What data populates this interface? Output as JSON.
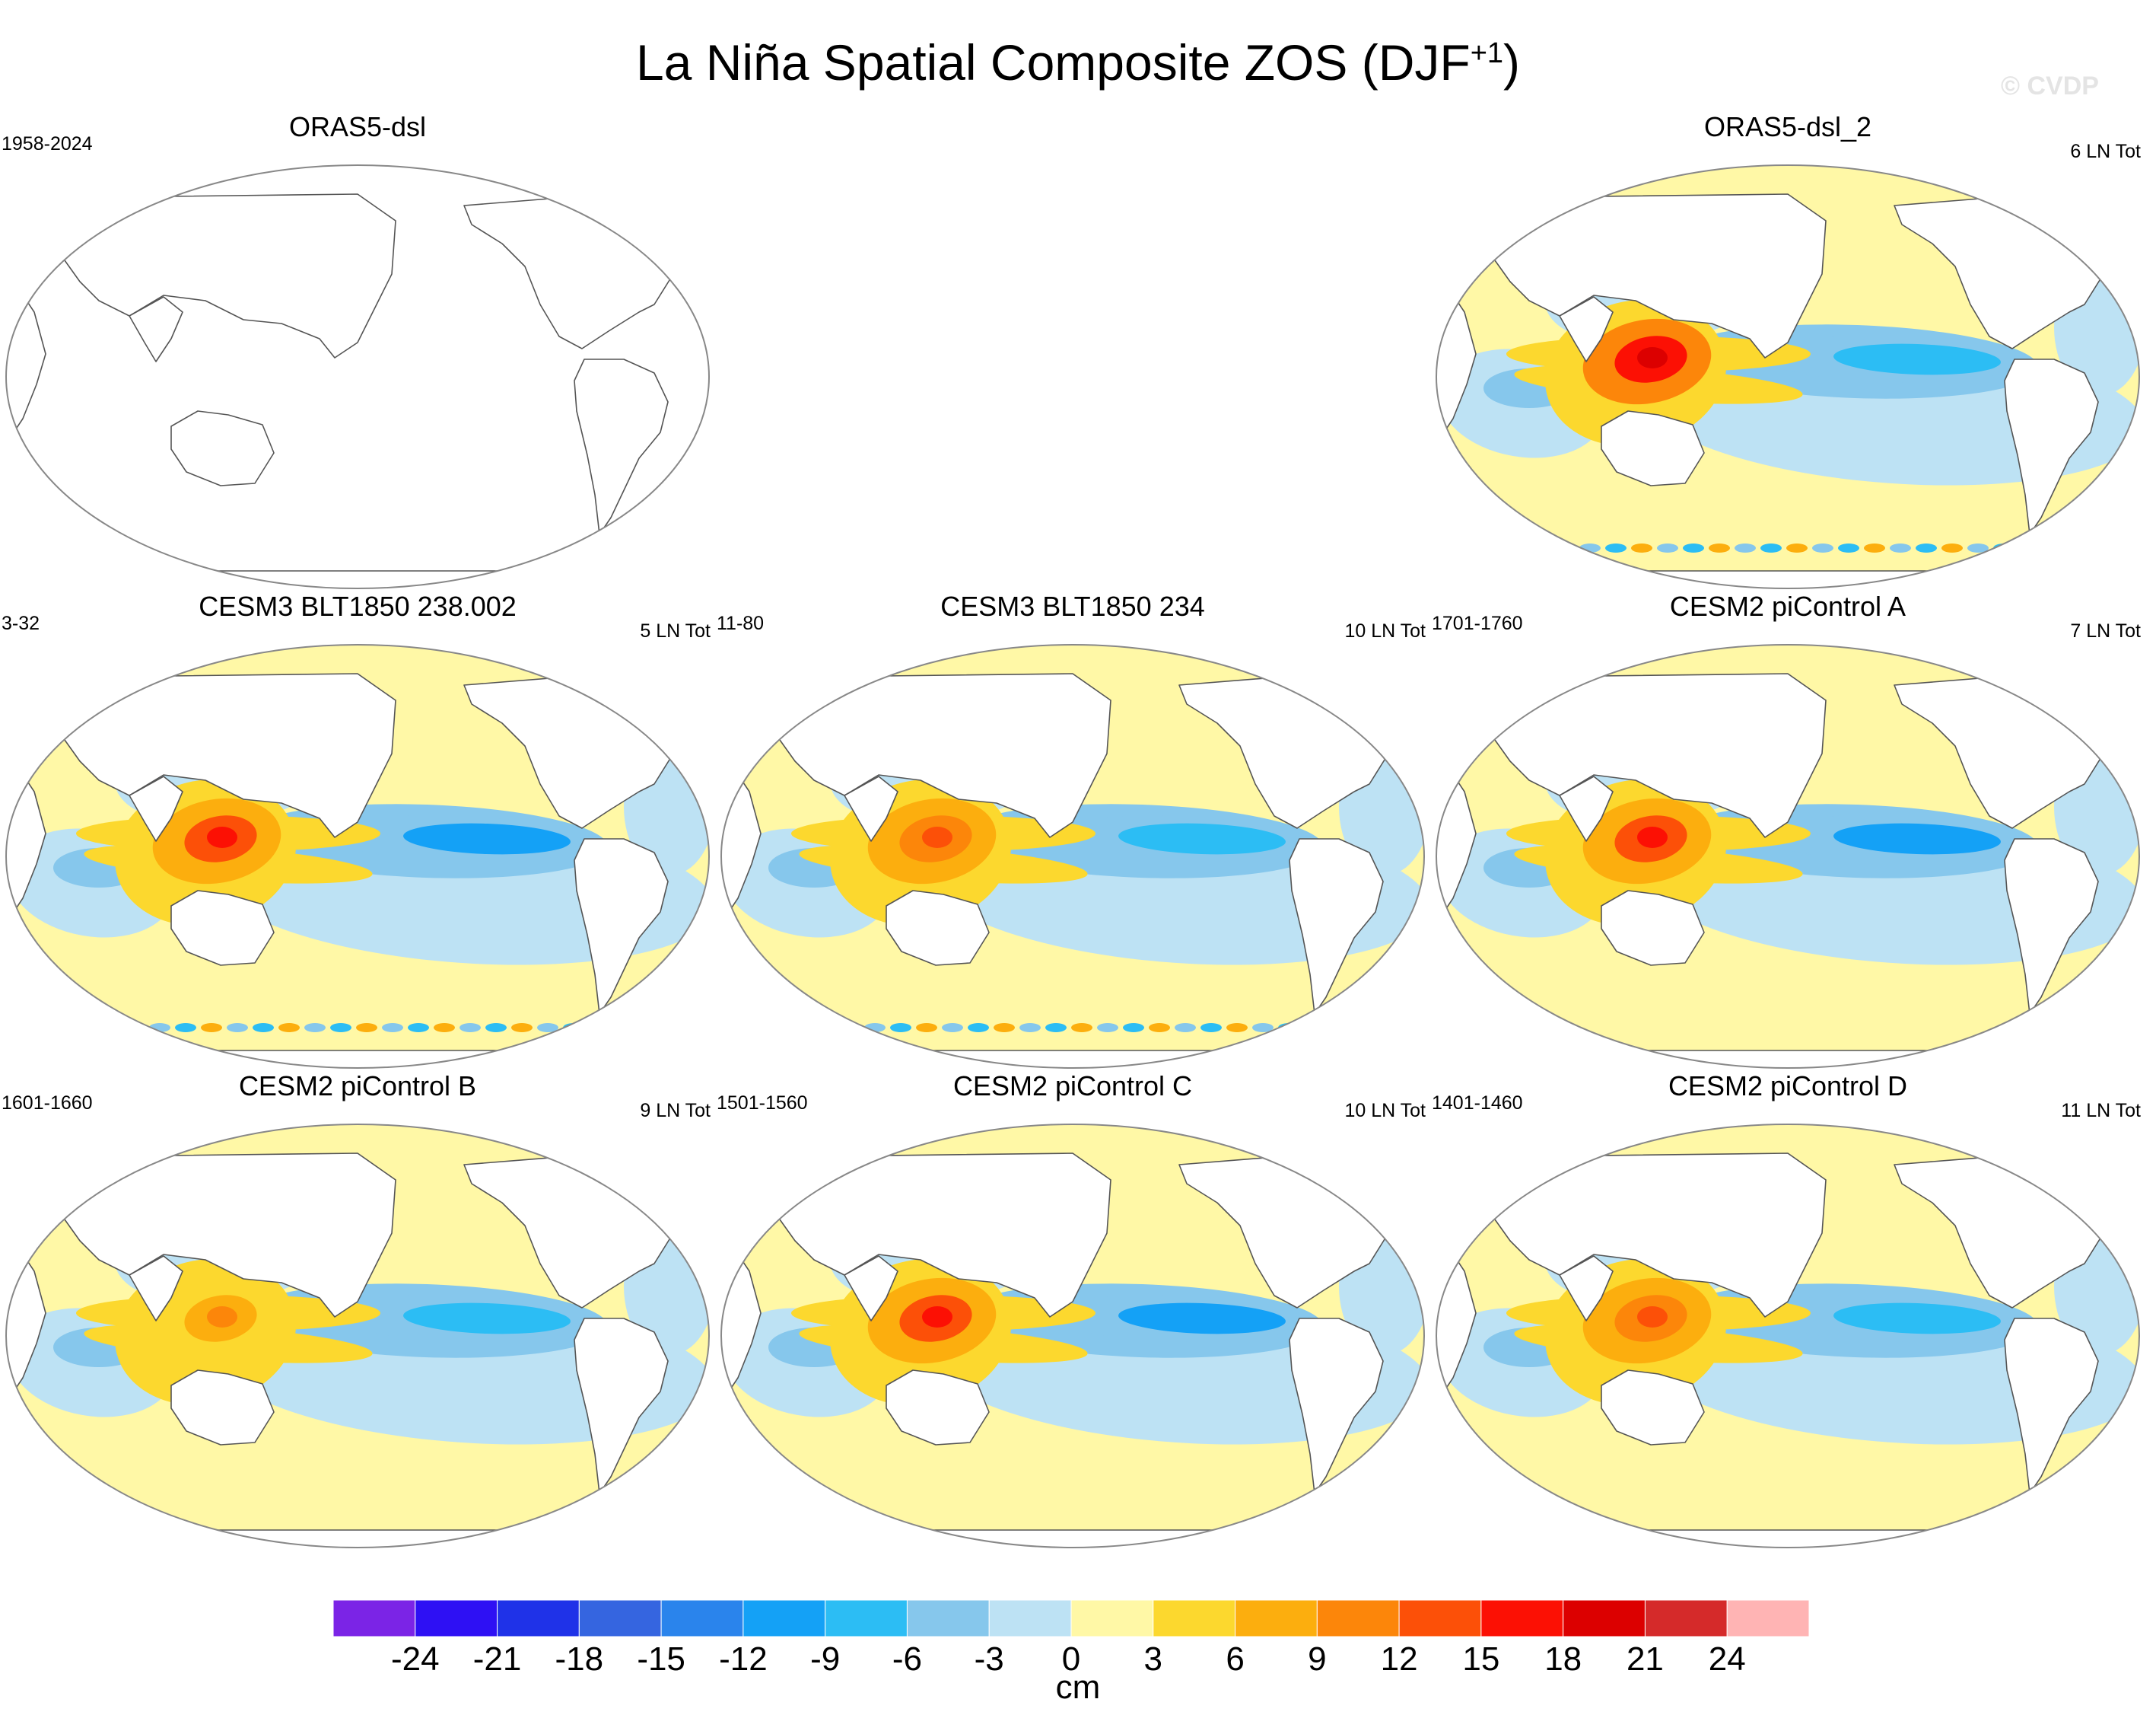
{
  "header": {
    "title": "La Niña Spatial Composite ZOS (DJF",
    "title_sup": "+1",
    "title_close": ")",
    "watermark": "© CVDP"
  },
  "chart_data": {
    "type": "heatmap",
    "projection": "Robinson, Pacific-centered",
    "panels": [
      {
        "title": "ORAS5-dsl",
        "left_label": "1958-2024",
        "right_label": "",
        "filled": false,
        "composite": null
      },
      {
        "title": "ORAS5-dsl_2",
        "left_label": "",
        "right_label": "6 LN Tot",
        "filled": true,
        "composite": {
          "west_pacific_max_cm": 19,
          "east_pacific_min_cm": -9,
          "south_ocean_noise": true
        }
      },
      {
        "title": "CESM3 BLT1850 238.002",
        "left_label": "3-32",
        "right_label": "5 LN Tot",
        "filled": true,
        "composite": {
          "west_pacific_max_cm": 17,
          "east_pacific_min_cm": -10,
          "south_ocean_noise": true
        }
      },
      {
        "title": "CESM3 BLT1850 234",
        "left_label": "11-80",
        "right_label": "10 LN Tot",
        "filled": true,
        "composite": {
          "west_pacific_max_cm": 14,
          "east_pacific_min_cm": -9,
          "south_ocean_noise": true
        }
      },
      {
        "title": "CESM2 piControl A",
        "left_label": "1701-1760",
        "right_label": "7 LN Tot",
        "filled": true,
        "composite": {
          "west_pacific_max_cm": 16,
          "east_pacific_min_cm": -10,
          "south_ocean_noise": false
        }
      },
      {
        "title": "CESM2 piControl B",
        "left_label": "1601-1660",
        "right_label": "9 LN Tot",
        "filled": true,
        "composite": {
          "west_pacific_max_cm": 11,
          "east_pacific_min_cm": -8,
          "south_ocean_noise": false
        }
      },
      {
        "title": "CESM2 piControl C",
        "left_label": "1501-1560",
        "right_label": "10 LN Tot",
        "filled": true,
        "composite": {
          "west_pacific_max_cm": 16,
          "east_pacific_min_cm": -10,
          "south_ocean_noise": false
        }
      },
      {
        "title": "CESM2 piControl D",
        "left_label": "1401-1460",
        "right_label": "11 LN Tot",
        "filled": true,
        "composite": {
          "west_pacific_max_cm": 12,
          "east_pacific_min_cm": -8,
          "south_ocean_noise": false
        }
      }
    ],
    "colorbar": {
      "levels": [
        -24,
        -21,
        -18,
        -15,
        -12,
        -9,
        -6,
        -3,
        0,
        3,
        6,
        9,
        12,
        15,
        18,
        21,
        24
      ],
      "tick_labels": [
        "-24",
        "-21",
        "-18",
        "-15",
        "-12",
        "-9",
        "-6",
        "-3",
        "0",
        "3",
        "6",
        "9",
        "12",
        "15",
        "18",
        "21",
        "24"
      ],
      "colors": [
        "#7b24e6",
        "#2e10f4",
        "#1f32e8",
        "#3565e0",
        "#2a84ec",
        "#14a1f6",
        "#2cbdf4",
        "#86c7ec",
        "#bde2f4",
        "#fff8a6",
        "#fcd82e",
        "#fcae0e",
        "#fc860a",
        "#fc5008",
        "#fc1004",
        "#dc0000",
        "#d52a2a",
        "#ffb4b4"
      ],
      "units": "cm"
    }
  }
}
